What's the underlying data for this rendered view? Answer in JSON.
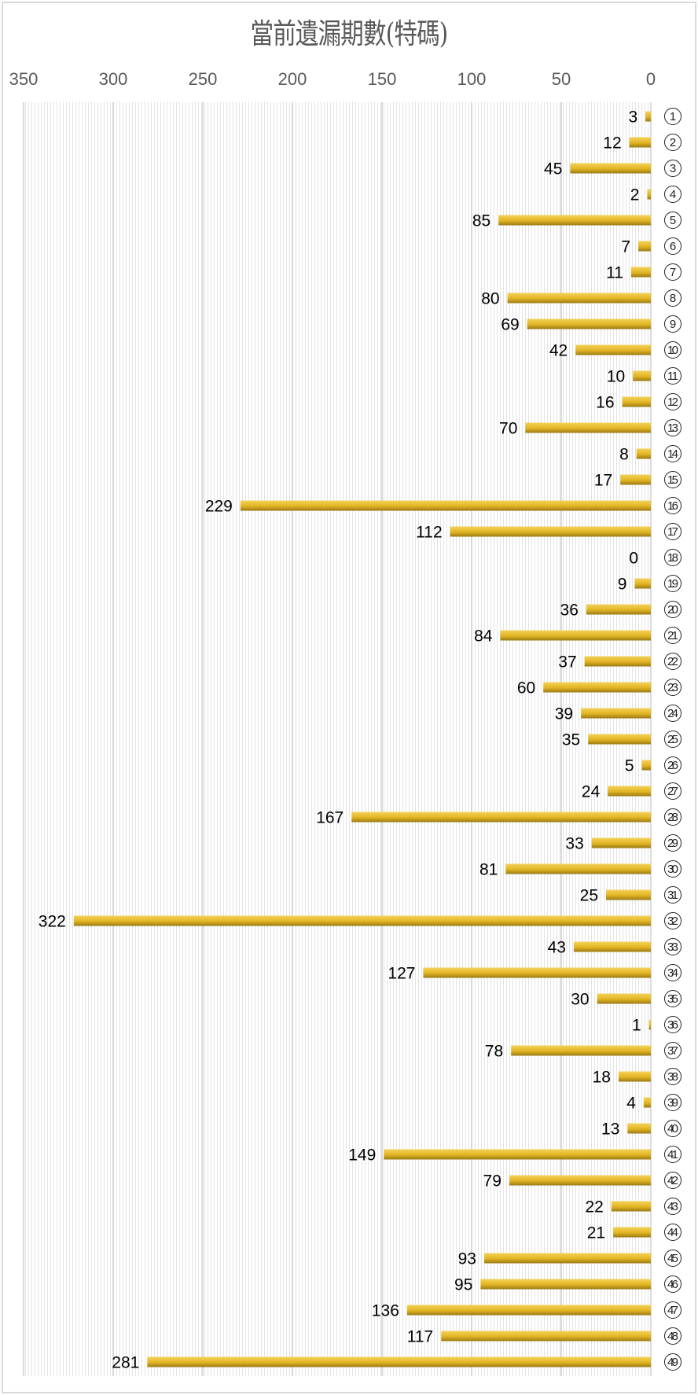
{
  "chart_data": {
    "type": "bar",
    "orientation": "horizontal",
    "x_reversed": true,
    "title": "當前遺漏期數(特碼)",
    "xlabel": "",
    "ylabel": "",
    "xlim": [
      0,
      350
    ],
    "xticks": [
      350,
      300,
      250,
      200,
      150,
      100,
      50,
      0
    ],
    "grid": true,
    "categories": [
      "1",
      "2",
      "3",
      "4",
      "5",
      "6",
      "7",
      "8",
      "9",
      "10",
      "11",
      "12",
      "13",
      "14",
      "15",
      "16",
      "17",
      "18",
      "19",
      "20",
      "21",
      "22",
      "23",
      "24",
      "25",
      "26",
      "27",
      "28",
      "29",
      "30",
      "31",
      "32",
      "33",
      "34",
      "35",
      "36",
      "37",
      "38",
      "39",
      "40",
      "41",
      "42",
      "43",
      "44",
      "45",
      "46",
      "47",
      "48",
      "49"
    ],
    "values": [
      3,
      12,
      45,
      2,
      85,
      7,
      11,
      80,
      69,
      42,
      10,
      16,
      70,
      8,
      17,
      229,
      112,
      0,
      9,
      36,
      84,
      37,
      60,
      39,
      35,
      5,
      24,
      167,
      33,
      81,
      25,
      322,
      43,
      127,
      30,
      1,
      78,
      18,
      4,
      13,
      149,
      79,
      22,
      21,
      93,
      95,
      136,
      117,
      281
    ],
    "bar_color": "#e6b820",
    "bar_shadow": "#9a7a14"
  }
}
